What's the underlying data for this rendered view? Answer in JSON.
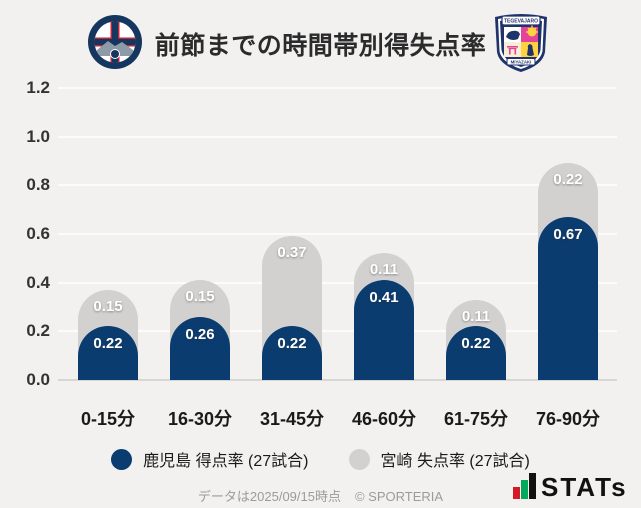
{
  "header": {
    "title": "前節までの時間帯別得失点率",
    "left_logo": "kagoshima-united-fc",
    "left_logo_text_top": "KAGOSHIMA",
    "left_logo_text_bottom": "UNITED FC",
    "right_logo": "tegevajaro-miyazaki",
    "right_logo_text_top": "TEGEVAJARO",
    "right_logo_text_bottom": "MIYAZAKI"
  },
  "chart_data": {
    "type": "bar",
    "stacked": true,
    "title": "前節までの時間帯別得失点率",
    "categories": [
      "0-15分",
      "16-30分",
      "31-45分",
      "46-60分",
      "61-75分",
      "76-90分"
    ],
    "series": [
      {
        "name": "鹿児島 得点率 (27試合)",
        "color": "#0b3c70",
        "values": [
          0.22,
          0.26,
          0.22,
          0.41,
          0.22,
          0.67
        ]
      },
      {
        "name": "宮崎 失点率 (27試合)",
        "color": "#d2d1d0",
        "values": [
          0.15,
          0.15,
          0.37,
          0.11,
          0.11,
          0.22
        ]
      }
    ],
    "xlabel": "",
    "ylabel": "",
    "ylim": [
      0,
      1.2
    ],
    "ytick_labels": [
      "0.0",
      "0.2",
      "0.4",
      "0.6",
      "0.8",
      "1.0",
      "1.2"
    ],
    "grid": true,
    "legend_position": "bottom"
  },
  "colors": {
    "background": "#f2f1f0",
    "gridline": "#fcfbfa",
    "baseline": "#d8d6d3",
    "kagoshima_navy": "#0b3c70",
    "miyazaki_gray": "#d2d1d0"
  },
  "footer": {
    "note": "データは2025/09/15時点",
    "copyright": "© SPORTERIA",
    "stats_text": "STATs"
  }
}
